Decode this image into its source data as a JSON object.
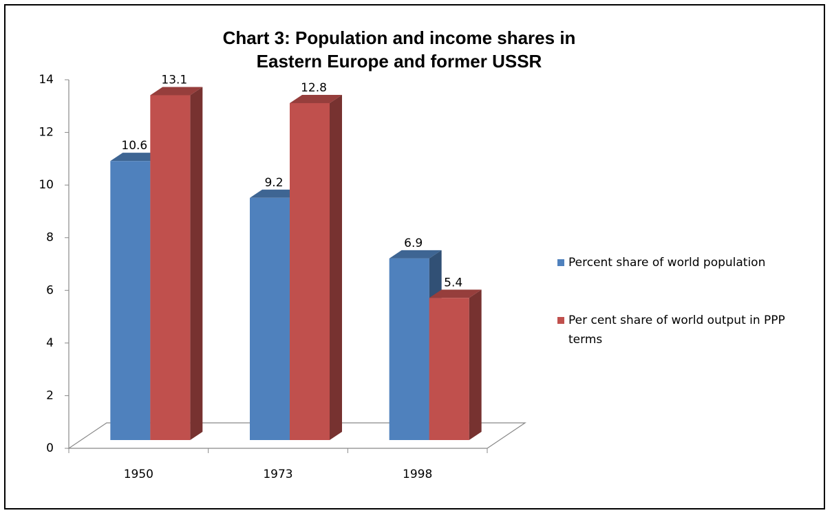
{
  "chart_data": {
    "type": "bar3d",
    "title": "Chart 3: Population and income shares in Eastern Europe and former USSR",
    "categories": [
      "1950",
      "1973",
      "1998"
    ],
    "series": [
      {
        "name": "Percent share of world population",
        "color": "#4f81bd",
        "values": [
          10.6,
          9.2,
          6.9
        ]
      },
      {
        "name": "Per cent share of world output in PPP terms",
        "color": "#c0504d",
        "values": [
          13.1,
          12.8,
          5.4
        ]
      }
    ],
    "ylim": [
      0,
      14
    ],
    "yticks": [
      0,
      2,
      4,
      6,
      8,
      10,
      12,
      14
    ],
    "legend": "right"
  }
}
